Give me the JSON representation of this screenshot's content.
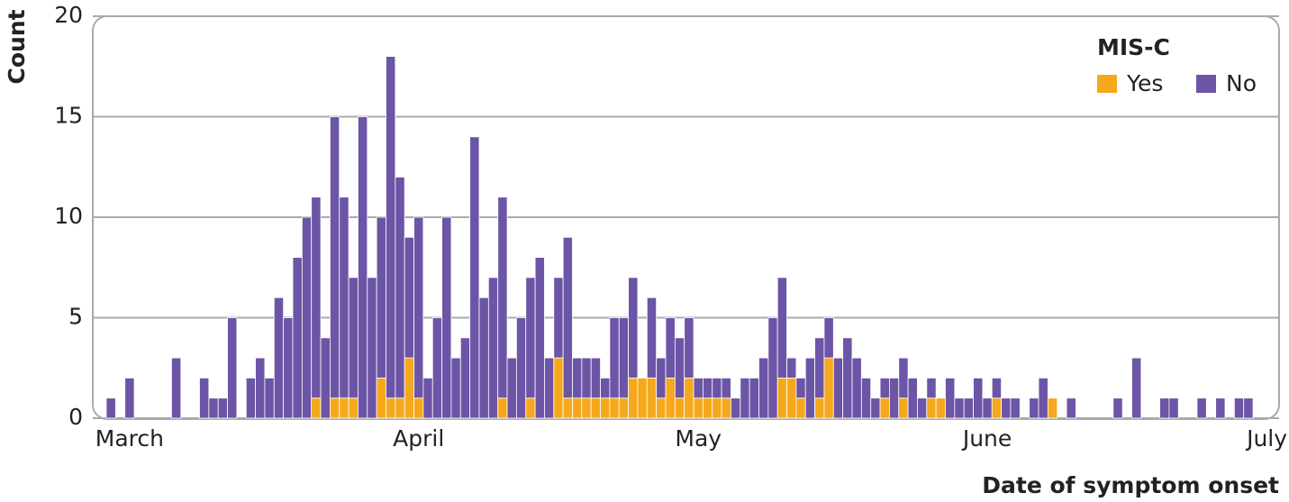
{
  "chart_data": {
    "type": "stacked_bar",
    "ylabel": "Count",
    "xlabel": "Date of symptom onset",
    "legend_title": "MIS-C",
    "legend_position": "upper right",
    "grid": true,
    "categories": [
      null,
      null,
      "March",
      null,
      null,
      null,
      null,
      null,
      null,
      null,
      null,
      null,
      null,
      null,
      null,
      null,
      null,
      null,
      null,
      null,
      null,
      null,
      null,
      null,
      null,
      null,
      null,
      null,
      null,
      null,
      null,
      null,
      null,
      "April",
      null,
      null,
      null,
      null,
      null,
      null,
      null,
      null,
      null,
      null,
      null,
      null,
      null,
      null,
      null,
      null,
      null,
      null,
      null,
      null,
      null,
      null,
      null,
      null,
      null,
      null,
      null,
      null,
      null,
      "May",
      null,
      null,
      null,
      null,
      null,
      null,
      null,
      null,
      null,
      null,
      null,
      null,
      null,
      null,
      null,
      null,
      null,
      null,
      null,
      null,
      null,
      null,
      null,
      null,
      null,
      null,
      null,
      null,
      null,
      null,
      "June",
      null,
      null,
      null,
      null,
      null,
      null,
      null,
      null,
      null,
      null,
      null,
      null,
      null,
      null,
      null,
      null,
      null,
      null,
      null,
      null,
      null,
      null,
      null,
      null,
      null,
      null,
      null,
      null,
      null,
      "July"
    ],
    "series": [
      {
        "name": "Yes",
        "color": "#f6a81d",
        "values": [
          0,
          0,
          0,
          0,
          0,
          0,
          0,
          0,
          0,
          0,
          0,
          0,
          0,
          0,
          0,
          0,
          0,
          0,
          0,
          0,
          0,
          0,
          1,
          0,
          1,
          1,
          1,
          0,
          0,
          2,
          1,
          1,
          3,
          1,
          0,
          0,
          0,
          0,
          0,
          0,
          0,
          0,
          1,
          0,
          0,
          1,
          0,
          0,
          3,
          1,
          1,
          1,
          1,
          1,
          1,
          1,
          2,
          2,
          2,
          1,
          2,
          1,
          2,
          1,
          1,
          1,
          1,
          0,
          0,
          0,
          0,
          0,
          2,
          2,
          1,
          0,
          1,
          3,
          0,
          0,
          0,
          0,
          0,
          1,
          0,
          1,
          0,
          0,
          1,
          1,
          0,
          0,
          0,
          0,
          0,
          1,
          0,
          0,
          0,
          0,
          0,
          1,
          0,
          0,
          0,
          0,
          0,
          0,
          0,
          0,
          0,
          0,
          0,
          0,
          0,
          0,
          0,
          0,
          0,
          0,
          0,
          0,
          0,
          0,
          0
        ]
      },
      {
        "name": "No",
        "color": "#6c55a6",
        "values": [
          1,
          0,
          2,
          0,
          0,
          0,
          0,
          3,
          0,
          0,
          2,
          1,
          1,
          5,
          0,
          2,
          3,
          2,
          6,
          5,
          8,
          10,
          10,
          4,
          14,
          10,
          6,
          15,
          7,
          8,
          17,
          11,
          6,
          9,
          2,
          5,
          10,
          3,
          4,
          14,
          6,
          7,
          10,
          3,
          5,
          6,
          8,
          3,
          4,
          8,
          2,
          2,
          2,
          1,
          4,
          4,
          5,
          0,
          4,
          2,
          3,
          3,
          3,
          1,
          1,
          1,
          1,
          1,
          2,
          2,
          3,
          5,
          5,
          1,
          1,
          3,
          3,
          2,
          3,
          4,
          3,
          2,
          1,
          1,
          2,
          2,
          2,
          1,
          1,
          0,
          2,
          1,
          1,
          2,
          1,
          1,
          1,
          1,
          0,
          1,
          2,
          0,
          0,
          1,
          0,
          0,
          0,
          0,
          1,
          0,
          3,
          0,
          0,
          1,
          1,
          0,
          0,
          1,
          0,
          1,
          0,
          1,
          1,
          0,
          0
        ]
      }
    ],
    "ylim": [
      0,
      20
    ],
    "yticks": [
      0,
      5,
      10,
      15,
      20
    ]
  }
}
